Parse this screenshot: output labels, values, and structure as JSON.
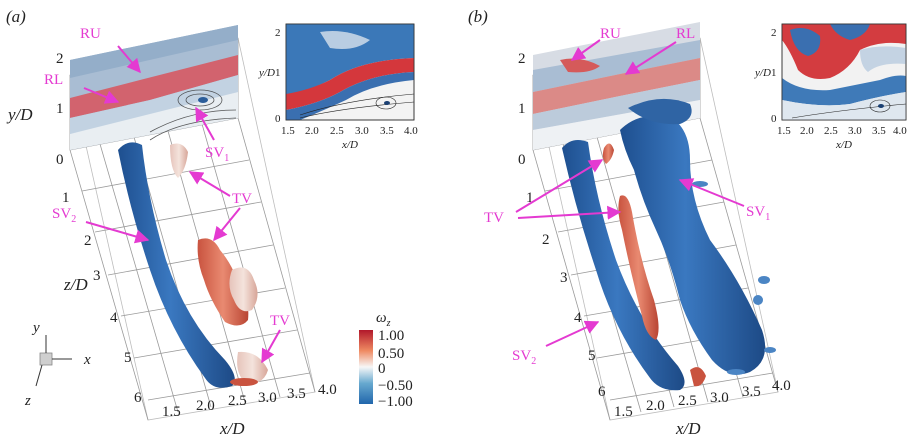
{
  "panel_a": {
    "label": "(a)",
    "annotations": {
      "ru": "RU",
      "rl": "RL",
      "sv1": "SV",
      "sv1_sub": "1",
      "tv_top": "TV",
      "sv2": "SV",
      "sv2_sub": "2",
      "tv_bottom": "TV"
    },
    "y_axis": {
      "label": "y/D",
      "ticks": [
        "2",
        "1",
        "0"
      ]
    },
    "z_axis": {
      "label": "z/D",
      "ticks": [
        "1",
        "2",
        "3",
        "4",
        "5",
        "6"
      ]
    },
    "x_axis": {
      "label": "x/D",
      "ticks": [
        "1.5",
        "2.0",
        "2.5",
        "3.0",
        "3.5",
        "4.0"
      ]
    },
    "inset": {
      "y_label": "y/D",
      "x_label": "x/D",
      "y_ticks": [
        "2",
        "1",
        "0"
      ],
      "x_ticks": [
        "1.5",
        "2.0",
        "2.5",
        "3.0",
        "3.5",
        "4.0"
      ]
    },
    "triad": {
      "y": "y",
      "x": "x",
      "z": "z"
    }
  },
  "panel_b": {
    "label": "(b)",
    "annotations": {
      "ru": "RU",
      "rl": "RL",
      "sv1": "SV",
      "sv1_sub": "1",
      "tv": "TV",
      "sv2": "SV",
      "sv2_sub": "2"
    },
    "y_axis": {
      "ticks": [
        "2",
        "1",
        "0"
      ]
    },
    "z_axis": {
      "ticks": [
        "1",
        "2",
        "3",
        "4",
        "5",
        "6"
      ]
    },
    "x_axis": {
      "label": "x/D",
      "ticks": [
        "1.5",
        "2.0",
        "2.5",
        "3.0",
        "3.5",
        "4.0"
      ]
    },
    "inset": {
      "y_label": "y/D",
      "x_label": "x/D",
      "y_ticks": [
        "2",
        "1",
        "0"
      ],
      "x_ticks": [
        "1.5",
        "2.0",
        "2.5",
        "3.0",
        "3.5",
        "4.0"
      ]
    }
  },
  "colorbar": {
    "title": "ω",
    "title_sub": "z",
    "ticks": [
      "1.00",
      "0.50",
      "0",
      "−0.50",
      "−1.00"
    ],
    "colors": {
      "max": "#b2182b",
      "mid_pos": "#ef8a62",
      "zero": "#f7f7f7",
      "mid_neg": "#67a9cf",
      "min": "#2166ac"
    }
  }
}
